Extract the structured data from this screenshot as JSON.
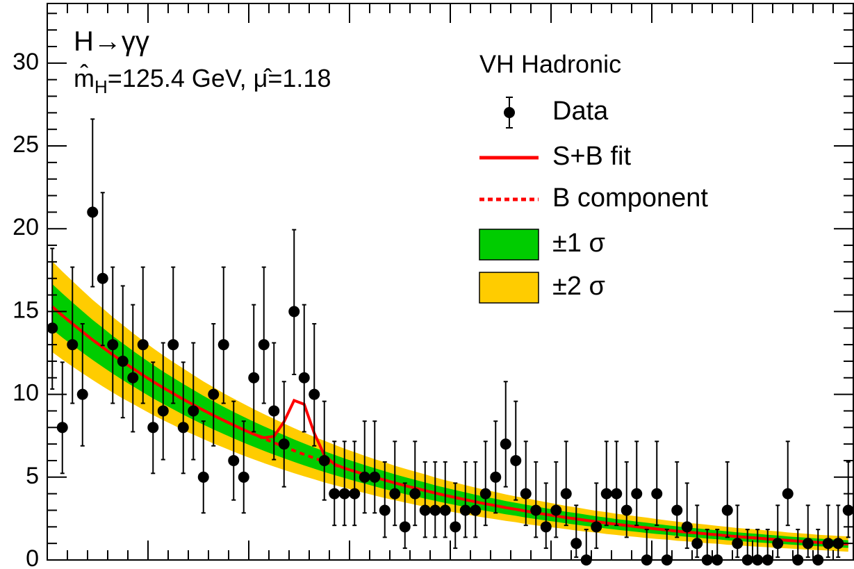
{
  "chart_data": {
    "type": "errorbar",
    "title": "H→γγ",
    "annotation": [
      "m̂",
      "H",
      "=125.4 GeV, μ̂=1.18"
    ],
    "legend_title": "VH Hadronic",
    "legend": [
      "Data",
      "S+B fit",
      "B component",
      "±1 σ",
      "±2 σ"
    ],
    "legend_position": "top-right",
    "colors": {
      "data": "#000000",
      "fit": "#ff0000",
      "band1": "#00cc00",
      "band2": "#ffcc00"
    },
    "ylim": [
      0,
      33.6
    ],
    "yticks": [
      0,
      5,
      10,
      15,
      20,
      25,
      30
    ],
    "values": [
      14,
      8,
      13,
      10,
      21,
      17,
      13,
      12,
      11,
      13,
      8,
      9,
      13,
      8,
      9,
      5,
      10,
      13,
      6,
      5,
      11,
      13,
      9,
      7,
      15,
      11,
      10,
      6,
      4,
      4,
      4,
      5,
      5,
      3,
      4,
      2,
      4,
      3,
      3,
      3,
      2,
      3,
      3,
      4,
      5,
      7,
      6,
      4,
      3,
      2,
      3,
      4,
      1,
      0,
      2,
      4,
      4,
      3,
      4,
      0,
      4,
      0,
      3,
      2,
      1,
      0,
      0,
      3,
      1,
      0,
      0,
      0,
      1,
      4,
      0,
      1,
      0,
      1,
      1,
      3
    ],
    "error_low": [
      3.68,
      2.77,
      3.54,
      3.11,
      4.5,
      4.05,
      3.54,
      3.41,
      3.26,
      3.54,
      2.77,
      2.94,
      3.54,
      2.77,
      2.94,
      2.16,
      3.11,
      3.54,
      2.38,
      2.16,
      3.26,
      3.54,
      2.94,
      2.58,
      3.8,
      3.26,
      3.11,
      2.38,
      1.91,
      1.91,
      1.91,
      2.16,
      2.16,
      1.63,
      1.91,
      1.29,
      1.91,
      1.63,
      1.63,
      1.63,
      1.29,
      1.63,
      1.63,
      1.91,
      2.16,
      2.58,
      2.38,
      1.91,
      1.63,
      1.29,
      1.63,
      1.91,
      0.83,
      0,
      1.29,
      1.91,
      1.91,
      1.63,
      1.91,
      0,
      1.91,
      0,
      1.63,
      1.29,
      0.83,
      0,
      0,
      1.63,
      0.83,
      0,
      0,
      0,
      0.83,
      1.91,
      0,
      0.83,
      0,
      0.83,
      0.83,
      1.63
    ],
    "error_high": [
      4.81,
      3.94,
      4.68,
      4.26,
      5.62,
      5.18,
      4.68,
      4.55,
      4.41,
      4.68,
      3.94,
      4.11,
      4.68,
      3.94,
      4.11,
      3.38,
      4.26,
      4.68,
      3.58,
      3.38,
      4.41,
      4.68,
      4.11,
      3.77,
      4.94,
      4.41,
      4.26,
      3.58,
      3.16,
      3.16,
      3.16,
      3.38,
      3.38,
      2.92,
      3.16,
      2.64,
      3.16,
      2.92,
      2.92,
      2.92,
      2.64,
      2.92,
      2.92,
      3.16,
      3.38,
      3.77,
      3.58,
      3.16,
      2.92,
      2.64,
      2.92,
      3.16,
      2.3,
      1.84,
      2.64,
      3.16,
      3.16,
      2.92,
      3.16,
      1.84,
      3.16,
      1.84,
      2.92,
      2.64,
      2.3,
      1.84,
      1.84,
      2.92,
      2.3,
      1.84,
      1.84,
      1.84,
      2.3,
      3.16,
      1.84,
      2.3,
      1.84,
      2.3,
      2.3,
      2.92
    ],
    "b_component": [
      15.29,
      14.76,
      14.26,
      13.77,
      13.29,
      12.84,
      12.39,
      11.97,
      11.56,
      11.16,
      10.77,
      10.4,
      10.05,
      9.7,
      9.37,
      9.04,
      8.73,
      8.43,
      8.14,
      7.86,
      7.59,
      7.33,
      7.08,
      6.84,
      6.6,
      6.37,
      6.15,
      5.94,
      5.74,
      5.54,
      5.35,
      5.17,
      4.99,
      4.82,
      4.65,
      4.49,
      4.34,
      4.19,
      4.04,
      3.9,
      3.77,
      3.64,
      3.51,
      3.39,
      3.28,
      3.16,
      3.06,
      2.95,
      2.85,
      2.75,
      2.66,
      2.56,
      2.48,
      2.39,
      2.31,
      2.23,
      2.15,
      2.08,
      2.01,
      1.94,
      1.87,
      1.81,
      1.74,
      1.68,
      1.63,
      1.57,
      1.52,
      1.46,
      1.41,
      1.36,
      1.32,
      1.27,
      1.23,
      1.18,
      1.14,
      1.1,
      1.06,
      1.03,
      0.99,
      0.96
    ],
    "sb_fit": [
      15.29,
      14.76,
      14.26,
      13.77,
      13.29,
      12.84,
      12.39,
      11.97,
      11.56,
      11.16,
      10.77,
      10.4,
      10.05,
      9.7,
      9.37,
      9.04,
      8.73,
      8.43,
      8.14,
      7.86,
      7.59,
      7.38,
      7.46,
      8.35,
      9.63,
      9.4,
      7.66,
      6.32,
      5.79,
      5.54,
      5.35,
      5.17,
      4.99,
      4.82,
      4.65,
      4.49,
      4.34,
      4.19,
      4.04,
      3.9,
      3.77,
      3.64,
      3.51,
      3.39,
      3.28,
      3.16,
      3.06,
      2.95,
      2.85,
      2.75,
      2.66,
      2.56,
      2.48,
      2.39,
      2.31,
      2.23,
      2.15,
      2.08,
      2.01,
      1.94,
      1.87,
      1.81,
      1.74,
      1.68,
      1.63,
      1.57,
      1.52,
      1.46,
      1.41,
      1.36,
      1.32,
      1.27,
      1.23,
      1.18,
      1.14,
      1.1,
      1.06,
      1.03,
      0.99,
      0.96
    ],
    "sigma1": [
      1.37,
      1.33,
      1.29,
      1.25,
      1.21,
      1.18,
      1.14,
      1.11,
      1.07,
      1.04,
      1.01,
      0.98,
      0.95,
      0.93,
      0.9,
      0.87,
      0.85,
      0.82,
      0.8,
      0.78,
      0.76,
      0.74,
      0.72,
      0.7,
      0.68,
      0.66,
      0.64,
      0.63,
      0.61,
      0.59,
      0.58,
      0.56,
      0.55,
      0.54,
      0.52,
      0.51,
      0.5,
      0.49,
      0.47,
      0.46,
      0.45,
      0.44,
      0.43,
      0.42,
      0.41,
      0.4,
      0.39,
      0.39,
      0.38,
      0.37,
      0.36,
      0.35,
      0.35,
      0.34,
      0.33,
      0.33,
      0.32,
      0.32,
      0.31,
      0.31,
      0.3,
      0.29,
      0.29,
      0.28,
      0.28,
      0.28,
      0.27,
      0.27,
      0.26,
      0.26,
      0.26,
      0.25,
      0.25,
      0.24,
      0.24,
      0.24,
      0.23,
      0.23,
      0.23,
      0.23
    ],
    "sigma2": [
      2.74,
      2.66,
      2.58,
      2.5,
      2.42,
      2.36,
      2.28,
      2.22,
      2.14,
      2.08,
      2.02,
      1.96,
      1.9,
      1.86,
      1.8,
      1.74,
      1.7,
      1.64,
      1.6,
      1.56,
      1.52,
      1.48,
      1.44,
      1.4,
      1.36,
      1.32,
      1.28,
      1.26,
      1.22,
      1.18,
      1.16,
      1.12,
      1.1,
      1.08,
      1.04,
      1.02,
      1,
      0.98,
      0.94,
      0.92,
      0.9,
      0.88,
      0.86,
      0.84,
      0.82,
      0.8,
      0.78,
      0.78,
      0.76,
      0.74,
      0.72,
      0.7,
      0.7,
      0.68,
      0.66,
      0.66,
      0.64,
      0.64,
      0.62,
      0.62,
      0.6,
      0.58,
      0.58,
      0.56,
      0.56,
      0.56,
      0.54,
      0.54,
      0.52,
      0.52,
      0.52,
      0.5,
      0.5,
      0.48,
      0.48,
      0.48,
      0.46,
      0.46,
      0.46,
      0.46
    ]
  }
}
